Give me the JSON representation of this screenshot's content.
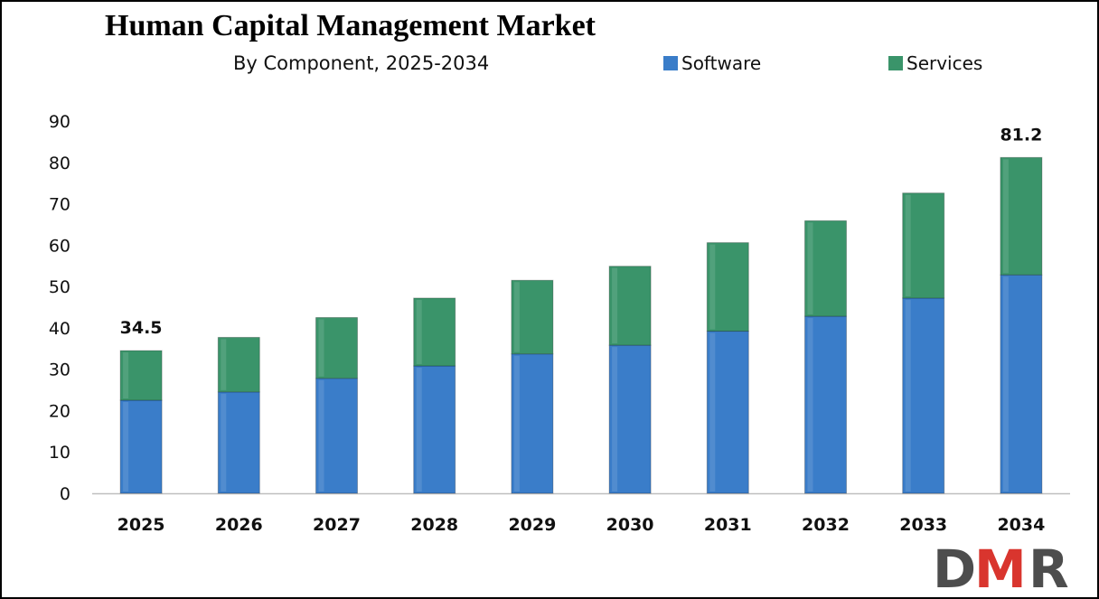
{
  "chart_data": {
    "type": "bar",
    "stacked": true,
    "title": "Human Capital Management Market",
    "subtitle": "By Component, 2025-2034",
    "categories": [
      "2025",
      "2026",
      "2027",
      "2028",
      "2029",
      "2030",
      "2031",
      "2032",
      "2033",
      "2034"
    ],
    "series": [
      {
        "name": "Software",
        "color": "#3a7dc9",
        "values": [
          22.5,
          24.5,
          27.8,
          30.8,
          33.7,
          35.8,
          39.2,
          42.8,
          47.2,
          52.8
        ]
      },
      {
        "name": "Services",
        "color": "#3a946a",
        "values": [
          12.0,
          13.2,
          14.7,
          16.4,
          17.8,
          19.1,
          21.4,
          23.1,
          25.4,
          28.4
        ]
      }
    ],
    "yticks": [
      0,
      10,
      20,
      30,
      40,
      50,
      60,
      70,
      80,
      90
    ],
    "ylim": [
      0,
      90
    ],
    "total_labels": [
      {
        "category": "2025",
        "text": "34.5"
      },
      {
        "category": "2034",
        "text": "81.2"
      }
    ],
    "xlabel": "",
    "ylabel": "",
    "grid": false,
    "legend_position": "top-right"
  },
  "logo": {
    "text": "DMR",
    "color_dark": "#4d4d4d",
    "color_accent": "#d9352e"
  }
}
